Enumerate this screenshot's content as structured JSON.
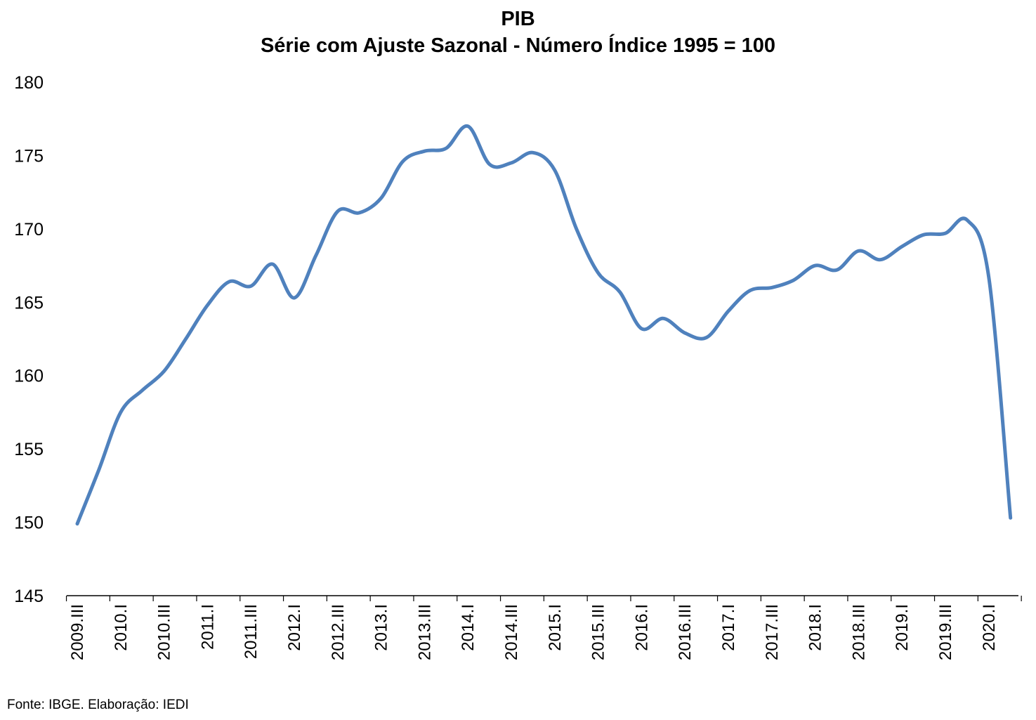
{
  "chart_data": {
    "type": "line",
    "title": "PIB",
    "subtitle": "Série com Ajuste Sazonal - Número Índice 1995 = 100",
    "xlabel": "",
    "ylabel": "",
    "ylim": [
      145,
      180
    ],
    "yticks": [
      145,
      150,
      155,
      160,
      165,
      170,
      175,
      180
    ],
    "grid": false,
    "legend": "none",
    "x_tick_labels": [
      "2009.III",
      "2010.I",
      "2010.III",
      "2011.I",
      "2011.III",
      "2012.I",
      "2012.III",
      "2013.I",
      "2013.III",
      "2014.I",
      "2014.III",
      "2015.I",
      "2015.III",
      "2016.I",
      "2016.III",
      "2017.I",
      "2017.III",
      "2018.I",
      "2018.III",
      "2019.I",
      "2019.III",
      "2020.I"
    ],
    "x": [
      "2009.III",
      "2009.IV",
      "2010.I",
      "2010.II",
      "2010.III",
      "2010.IV",
      "2011.I",
      "2011.II",
      "2011.III",
      "2011.IV",
      "2012.I",
      "2012.II",
      "2012.III",
      "2012.IV",
      "2013.I",
      "2013.II",
      "2013.III",
      "2013.IV",
      "2014.I",
      "2014.II",
      "2014.III",
      "2014.IV",
      "2015.I",
      "2015.II",
      "2015.III",
      "2015.IV",
      "2016.I",
      "2016.II",
      "2016.III",
      "2016.IV",
      "2017.I",
      "2017.II",
      "2017.III",
      "2017.IV",
      "2018.I",
      "2018.II",
      "2018.III",
      "2018.IV",
      "2019.I",
      "2019.II",
      "2019.III",
      "2019.IV",
      "2020.I",
      "2020.II"
    ],
    "series": [
      {
        "values": [
          149.9,
          153.6,
          157.5,
          159.0,
          160.3,
          162.5,
          164.8,
          166.4,
          166.1,
          167.6,
          165.3,
          168.2,
          171.2,
          171.1,
          172.1,
          174.6,
          175.3,
          175.5,
          177.0,
          174.4,
          174.5,
          175.2,
          174.0,
          170.0,
          167.0,
          165.7,
          163.2,
          163.9,
          162.9,
          162.6,
          164.4,
          165.8,
          166.0,
          166.5,
          167.5,
          167.2,
          168.5,
          167.9,
          168.8,
          169.6,
          169.7,
          170.6,
          166.7,
          150.3
        ],
        "color": "#4f81bd"
      }
    ],
    "source": "Fonte: IBGE. Elaboração: IEDI"
  }
}
